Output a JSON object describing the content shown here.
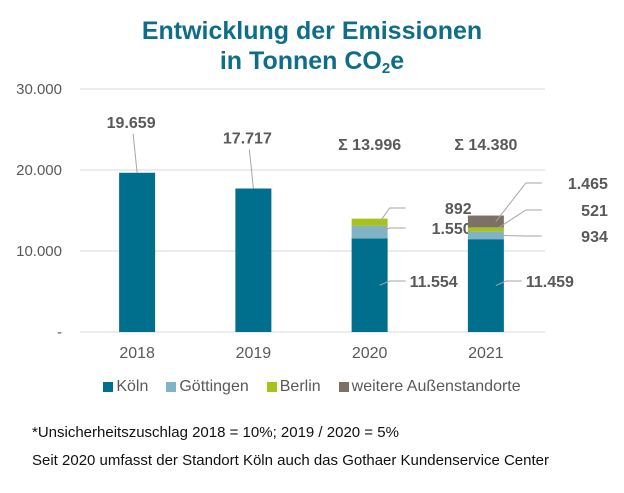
{
  "title_line1": "Entwicklung der Emissionen",
  "title_line2_pre": "in Tonnen CO",
  "title_line2_sub": "2",
  "title_line2_post": "e",
  "chart_data": {
    "type": "bar",
    "stacked": true,
    "title": "Entwicklung der Emissionen in Tonnen CO2e",
    "xlabel": "",
    "ylabel": "",
    "ylim": [
      0,
      30000
    ],
    "yticks": [
      0,
      10000,
      20000,
      30000
    ],
    "ytick_labels": [
      "-",
      "10.000",
      "20.000",
      "30.000"
    ],
    "grid": true,
    "legend_position": "bottom",
    "categories": [
      "2018",
      "2019",
      "2020",
      "2021"
    ],
    "series": [
      {
        "name": "Köln",
        "color": "#006f8e",
        "values": [
          19659,
          17717,
          11554,
          11459
        ],
        "labels": [
          "19.659",
          "17.717",
          "11.554",
          "11.459"
        ]
      },
      {
        "name": "Göttingen",
        "color": "#80b4c5",
        "values": [
          0,
          0,
          1550,
          934
        ],
        "labels": [
          "",
          "",
          "1.550",
          "934"
        ]
      },
      {
        "name": "Berlin",
        "color": "#a7c31b",
        "values": [
          0,
          0,
          892,
          521
        ],
        "labels": [
          "",
          "",
          "892",
          "521"
        ]
      },
      {
        "name": "weitere Außenstandorte",
        "color": "#7b7166",
        "values": [
          0,
          0,
          0,
          1465
        ],
        "labels": [
          "",
          "",
          "",
          "1.465"
        ]
      }
    ],
    "totals": [
      null,
      null,
      13996,
      14380
    ],
    "total_labels": [
      "",
      "",
      "Σ 13.996",
      "Σ 14.380"
    ]
  },
  "notes": [
    "*Unsicherheitszuschlag 2018 = 10%; 2019 / 2020 = 5%",
    "Seit 2020 umfasst der Standort Köln auch das Gothaer Kundenservice Center"
  ]
}
